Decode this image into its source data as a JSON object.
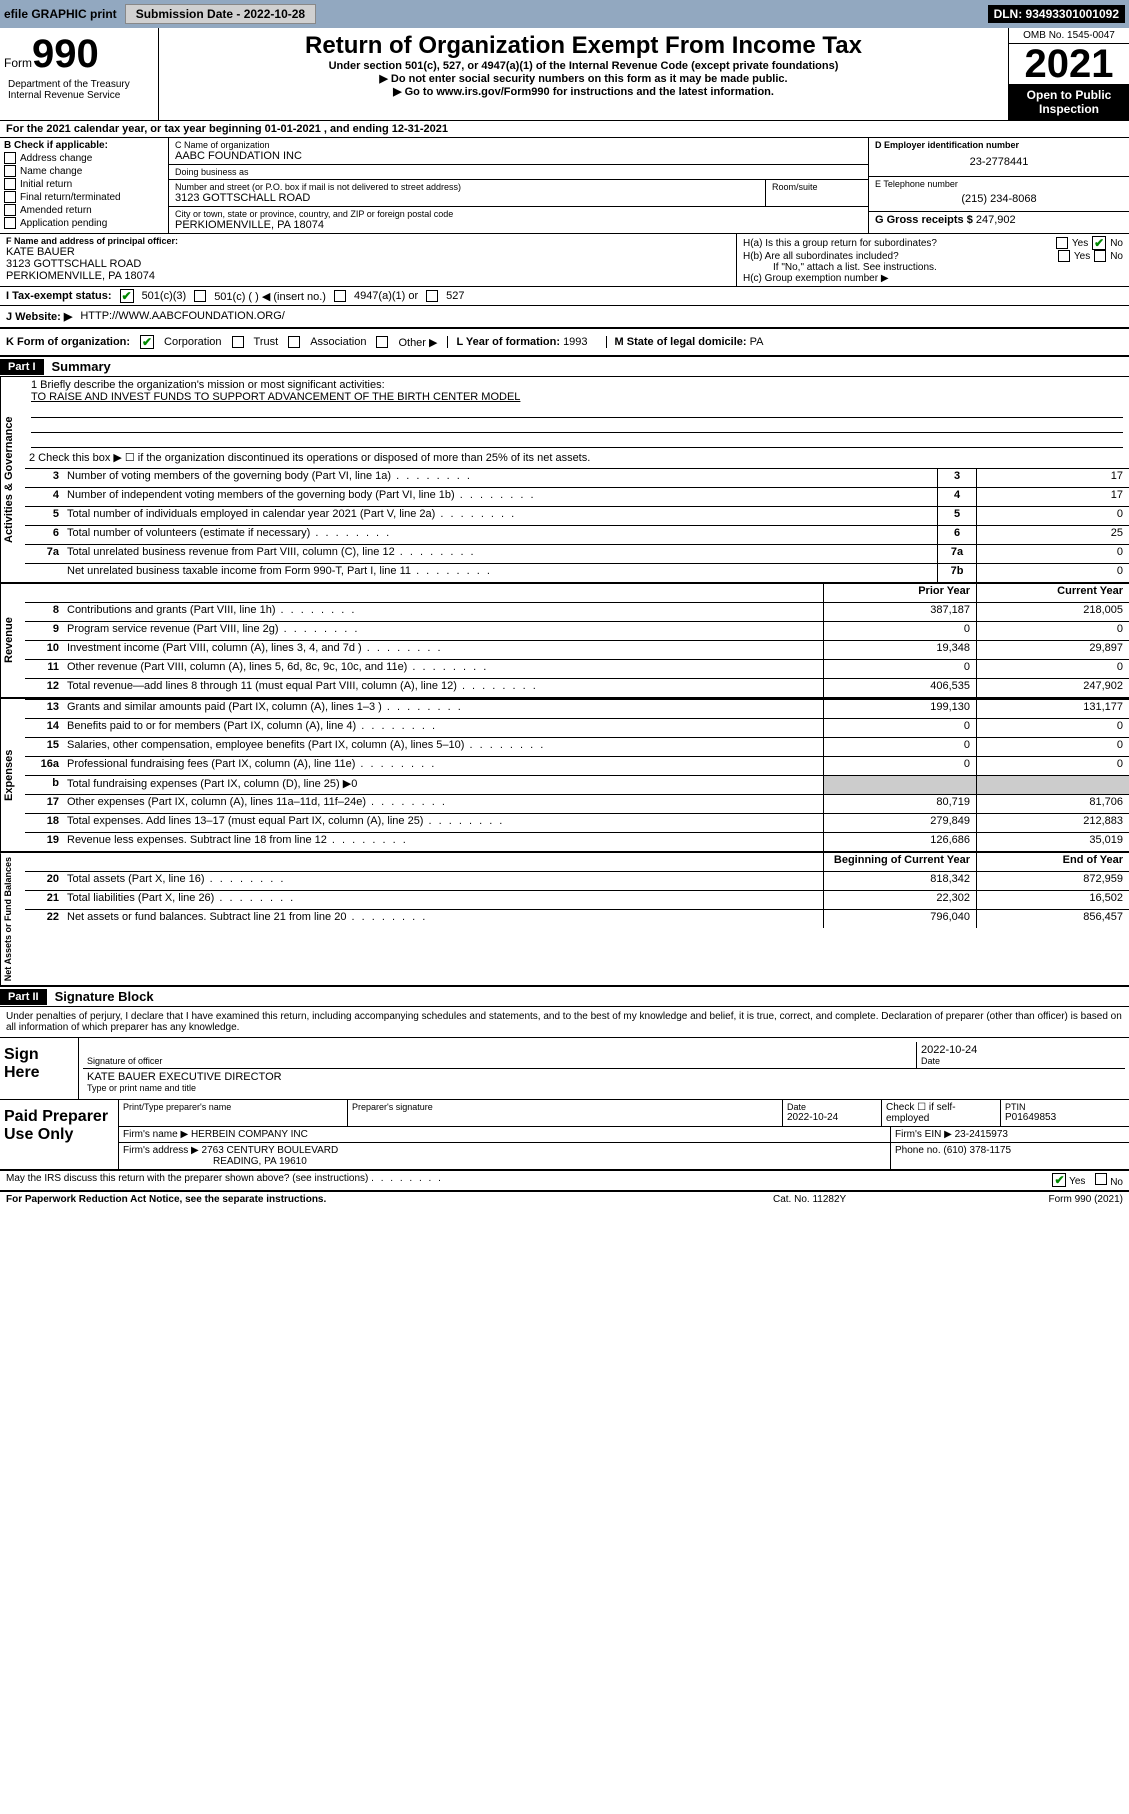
{
  "top_bar": {
    "efile": "efile GRAPHIC print",
    "submission_label": "Submission Date - 2022-10-28",
    "dln": "DLN: 93493301001092"
  },
  "header": {
    "form_word": "Form",
    "form_num": "990",
    "title": "Return of Organization Exempt From Income Tax",
    "subtitle": "Under section 501(c), 527, or 4947(a)(1) of the Internal Revenue Code (except private foundations)",
    "note1": "▶ Do not enter social security numbers on this form as it may be made public.",
    "note2": "▶ Go to www.irs.gov/Form990 for instructions and the latest information.",
    "dept": "Department of the Treasury\nInternal Revenue Service",
    "omb": "OMB No. 1545-0047",
    "year": "2021",
    "open": "Open to Public Inspection"
  },
  "line_a": "For the 2021 calendar year, or tax year beginning 01-01-2021    , and ending 12-31-2021",
  "section_b": {
    "header": "B Check if applicable:",
    "items": [
      "Address change",
      "Name change",
      "Initial return",
      "Final return/terminated",
      "Amended return",
      "Application pending"
    ]
  },
  "org": {
    "name_label": "C Name of organization",
    "name": "AABC FOUNDATION INC",
    "dba_label": "Doing business as",
    "dba": "",
    "addr_label": "Number and street (or P.O. box if mail is not delivered to street address)",
    "room_label": "Room/suite",
    "addr": "3123 GOTTSCHALL ROAD",
    "city_label": "City or town, state or province, country, and ZIP or foreign postal code",
    "city": "PERKIOMENVILLE, PA  18074"
  },
  "d": {
    "label": "D Employer identification number",
    "value": "23-2778441"
  },
  "e": {
    "label": "E Telephone number",
    "value": "(215) 234-8068"
  },
  "g": {
    "label": "G Gross receipts $",
    "value": "247,902"
  },
  "f": {
    "label": "F  Name and address of principal officer:",
    "name": "KATE BAUER",
    "addr1": "3123 GOTTSCHALL ROAD",
    "addr2": "PERKIOMENVILLE, PA  18074"
  },
  "h": {
    "a_label": "H(a)  Is this a group return for subordinates?",
    "b_label": "H(b)  Are all subordinates included?",
    "note": "If \"No,\" attach a list. See instructions.",
    "c_label": "H(c)  Group exemption number ▶",
    "yes": "Yes",
    "no": "No"
  },
  "i": {
    "label": "I    Tax-exempt status:",
    "opts": [
      "501(c)(3)",
      "501(c) (  ) ◀ (insert no.)",
      "4947(a)(1) or",
      "527"
    ]
  },
  "j": {
    "label": "J   Website: ▶",
    "value": "HTTP://WWW.AABCFOUNDATION.ORG/"
  },
  "k": {
    "label": "K Form of organization:",
    "opts": [
      "Corporation",
      "Trust",
      "Association",
      "Other ▶"
    ]
  },
  "l": {
    "label": "L Year of formation:",
    "value": "1993"
  },
  "m": {
    "label": "M State of legal domicile:",
    "value": "PA"
  },
  "part1": {
    "label": "Part I",
    "title": "Summary"
  },
  "governance": {
    "label": "Activities & Governance",
    "line1_label": "1   Briefly describe the organization's mission or most significant activities:",
    "mission": "TO RAISE AND INVEST FUNDS TO SUPPORT ADVANCEMENT OF THE BIRTH CENTER MODEL",
    "line2": "2    Check this box ▶ ☐  if the organization discontinued its operations or disposed of more than 25% of its net assets.",
    "rows": [
      {
        "n": "3",
        "desc": "Number of voting members of the governing body (Part VI, line 1a)",
        "box": "3",
        "val": "17"
      },
      {
        "n": "4",
        "desc": "Number of independent voting members of the governing body (Part VI, line 1b)",
        "box": "4",
        "val": "17"
      },
      {
        "n": "5",
        "desc": "Total number of individuals employed in calendar year 2021 (Part V, line 2a)",
        "box": "5",
        "val": "0"
      },
      {
        "n": "6",
        "desc": "Total number of volunteers (estimate if necessary)",
        "box": "6",
        "val": "25"
      },
      {
        "n": "7a",
        "desc": "Total unrelated business revenue from Part VIII, column (C), line 12",
        "box": "7a",
        "val": "0"
      },
      {
        "n": "",
        "desc": "Net unrelated business taxable income from Form 990-T, Part I, line 11",
        "box": "7b",
        "val": "0"
      }
    ]
  },
  "revenue": {
    "label": "Revenue",
    "header_prior": "Prior Year",
    "header_current": "Current Year",
    "rows": [
      {
        "n": "8",
        "desc": "Contributions and grants (Part VIII, line 1h)",
        "prior": "387,187",
        "curr": "218,005"
      },
      {
        "n": "9",
        "desc": "Program service revenue (Part VIII, line 2g)",
        "prior": "0",
        "curr": "0"
      },
      {
        "n": "10",
        "desc": "Investment income (Part VIII, column (A), lines 3, 4, and 7d )",
        "prior": "19,348",
        "curr": "29,897"
      },
      {
        "n": "11",
        "desc": "Other revenue (Part VIII, column (A), lines 5, 6d, 8c, 9c, 10c, and 11e)",
        "prior": "0",
        "curr": "0"
      },
      {
        "n": "12",
        "desc": "Total revenue—add lines 8 through 11 (must equal Part VIII, column (A), line 12)",
        "prior": "406,535",
        "curr": "247,902"
      }
    ]
  },
  "expenses": {
    "label": "Expenses",
    "rows": [
      {
        "n": "13",
        "desc": "Grants and similar amounts paid (Part IX, column (A), lines 1–3 )",
        "prior": "199,130",
        "curr": "131,177"
      },
      {
        "n": "14",
        "desc": "Benefits paid to or for members (Part IX, column (A), line 4)",
        "prior": "0",
        "curr": "0"
      },
      {
        "n": "15",
        "desc": "Salaries, other compensation, employee benefits (Part IX, column (A), lines 5–10)",
        "prior": "0",
        "curr": "0"
      },
      {
        "n": "16a",
        "desc": "Professional fundraising fees (Part IX, column (A), line 11e)",
        "prior": "0",
        "curr": "0"
      },
      {
        "n": "b",
        "desc": "Total fundraising expenses (Part IX, column (D), line 25) ▶0",
        "prior": "",
        "curr": "",
        "grey": true
      },
      {
        "n": "17",
        "desc": "Other expenses (Part IX, column (A), lines 11a–11d, 11f–24e)",
        "prior": "80,719",
        "curr": "81,706"
      },
      {
        "n": "18",
        "desc": "Total expenses. Add lines 13–17 (must equal Part IX, column (A), line 25)",
        "prior": "279,849",
        "curr": "212,883"
      },
      {
        "n": "19",
        "desc": "Revenue less expenses. Subtract line 18 from line 12",
        "prior": "126,686",
        "curr": "35,019"
      }
    ]
  },
  "netassets": {
    "label": "Net Assets or Fund Balances",
    "header_begin": "Beginning of Current Year",
    "header_end": "End of Year",
    "rows": [
      {
        "n": "20",
        "desc": "Total assets (Part X, line 16)",
        "prior": "818,342",
        "curr": "872,959"
      },
      {
        "n": "21",
        "desc": "Total liabilities (Part X, line 26)",
        "prior": "22,302",
        "curr": "16,502"
      },
      {
        "n": "22",
        "desc": "Net assets or fund balances. Subtract line 21 from line 20",
        "prior": "796,040",
        "curr": "856,457"
      }
    ]
  },
  "part2": {
    "label": "Part II",
    "title": "Signature Block"
  },
  "perjury": "Under penalties of perjury, I declare that I have examined this return, including accompanying schedules and statements, and to the best of my knowledge and belief, it is true, correct, and complete. Declaration of preparer (other than officer) is based on all information of which preparer has any knowledge.",
  "sign": {
    "label": "Sign Here",
    "date": "2022-10-24",
    "sig_label": "Signature of officer",
    "date_label": "Date",
    "name": "KATE BAUER  EXECUTIVE DIRECTOR",
    "name_label": "Type or print name and title"
  },
  "preparer": {
    "label": "Paid Preparer Use Only",
    "print_label": "Print/Type preparer's name",
    "sig_label": "Preparer's signature",
    "date_label": "Date",
    "date": "2022-10-24",
    "check_label": "Check ☐ if self-employed",
    "ptin_label": "PTIN",
    "ptin": "P01649853",
    "firm_name_label": "Firm's name    ▶",
    "firm_name": "HERBEIN COMPANY INC",
    "firm_ein_label": "Firm's EIN ▶",
    "firm_ein": "23-2415973",
    "firm_addr_label": "Firm's address ▶",
    "firm_addr1": "2763 CENTURY BOULEVARD",
    "firm_addr2": "READING, PA  19610",
    "phone_label": "Phone no.",
    "phone": "(610) 378-1175"
  },
  "discuss": {
    "label": "May the IRS discuss this return with the preparer shown above? (see instructions)",
    "yes": "Yes",
    "no": "No"
  },
  "footer": {
    "left": "For Paperwork Reduction Act Notice, see the separate instructions.",
    "mid": "Cat. No. 11282Y",
    "right": "Form 990 (2021)"
  },
  "colors": {
    "top_bar_bg": "#92a8c0",
    "black": "#000000",
    "link": "#0000cc",
    "check_green": "#008800",
    "grey_cell": "#cccccc"
  }
}
